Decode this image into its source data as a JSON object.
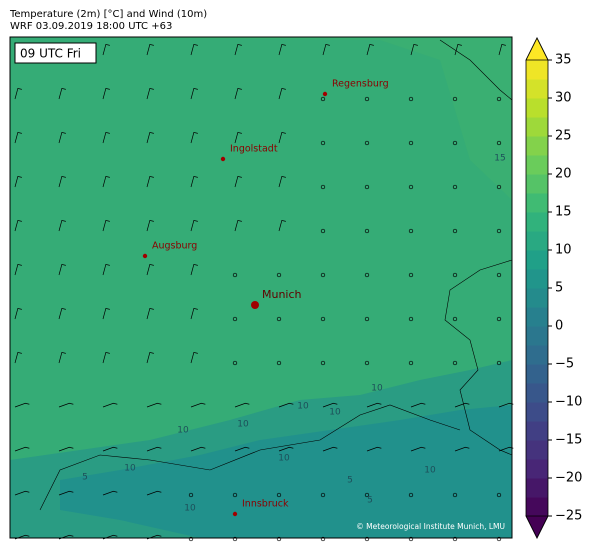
{
  "header": {
    "title": "Temperature (2m) [°C] and Wind (10m)",
    "subtitle": "WRF 03.09.2019 18:00 UTC +63"
  },
  "map": {
    "time_label": "09 UTC Fri",
    "cities": [
      {
        "name": "Regensburg"
      },
      {
        "name": "Ingolstadt"
      },
      {
        "name": "Augsburg"
      },
      {
        "name": "Munich"
      },
      {
        "name": "Innsbruck"
      }
    ],
    "contour_labels": [
      "15",
      "10",
      "10",
      "10",
      "10",
      "10",
      "10",
      "10",
      "10",
      "5",
      "5",
      "5",
      "10"
    ],
    "credit": "© Meteorological Institute Munich, LMU"
  },
  "colorbar": {
    "lim": [
      -25,
      35
    ],
    "step": 2.5,
    "ticks": [
      {
        "value": -25,
        "label": "−25"
      },
      {
        "value": -20,
        "label": "−20"
      },
      {
        "value": -15,
        "label": "−15"
      },
      {
        "value": -10,
        "label": "−10"
      },
      {
        "value": -5,
        "label": "−5"
      },
      0,
      5,
      10,
      15,
      20,
      25,
      30,
      35
    ]
  }
}
